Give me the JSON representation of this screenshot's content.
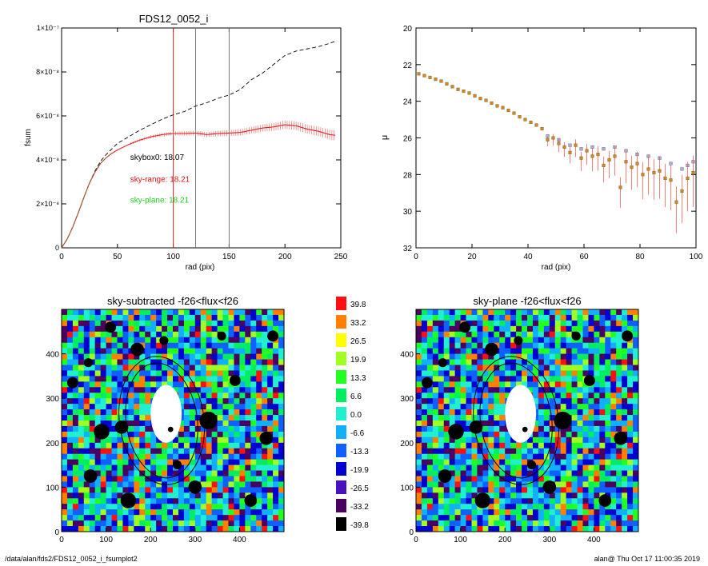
{
  "chart_data": [
    {
      "type": "line",
      "title": "FDS12_0052_i",
      "xlabel": "rad (pix)",
      "ylabel": "fsum",
      "xlim": [
        0,
        250
      ],
      "ylim": [
        0,
        1e-07
      ],
      "xticks": [
        "0",
        "50",
        "100",
        "150",
        "200",
        "250"
      ],
      "yticks": [
        "0",
        "2×10⁻⁸",
        "4×10⁻⁸",
        "6×10⁻⁸",
        "8×10⁻⁸",
        "1×10⁻⁷"
      ],
      "vlines": [
        {
          "x": 100,
          "color": "#e02020"
        },
        {
          "x": 120,
          "color": "#777777"
        },
        {
          "x": 150,
          "color": "#777777"
        }
      ],
      "annotations": [
        {
          "text": "skybox0: 18.07",
          "color": "#000000",
          "x": 60,
          "y": 4e-08
        },
        {
          "text": "sky-range: 18.21",
          "color": "#e01010",
          "x": 60,
          "y": 3e-08
        },
        {
          "text": "sky-plane: 18.21",
          "color": "#20cc20",
          "x": 60,
          "y": 2.05e-08
        }
      ],
      "series": [
        {
          "style": "dashed",
          "color": "#000000",
          "x": [
            0,
            5,
            10,
            15,
            20,
            25,
            30,
            35,
            40,
            45,
            50,
            60,
            70,
            80,
            90,
            100,
            110,
            120,
            130,
            140,
            150,
            160,
            170,
            180,
            190,
            200,
            210,
            220,
            230,
            240,
            245
          ],
          "y": [
            0,
            4e-09,
            9.5e-09,
            1.6e-08,
            2.3e-08,
            2.95e-08,
            3.5e-08,
            3.95e-08,
            4.25e-08,
            4.5e-08,
            4.75e-08,
            5.05e-08,
            5.35e-08,
            5.6e-08,
            5.85e-08,
            6.05e-08,
            6.2e-08,
            6.45e-08,
            6.6e-08,
            6.8e-08,
            6.95e-08,
            7.2e-08,
            7.65e-08,
            7.95e-08,
            8.35e-08,
            8.75e-08,
            8.95e-08,
            9.05e-08,
            9.15e-08,
            9.3e-08,
            9.4e-08
          ]
        },
        {
          "style": "solid-with-errors",
          "color": "#e02020",
          "x": [
            0,
            5,
            10,
            15,
            20,
            25,
            30,
            35,
            40,
            45,
            50,
            60,
            70,
            80,
            90,
            100,
            110,
            120,
            130,
            140,
            150,
            160,
            170,
            180,
            190,
            200,
            210,
            220,
            230,
            240,
            245
          ],
          "y": [
            0,
            4e-09,
            9.5e-09,
            1.6e-08,
            2.3e-08,
            2.95e-08,
            3.45e-08,
            3.85e-08,
            4.1e-08,
            4.3e-08,
            4.45e-08,
            4.7e-08,
            4.9e-08,
            5.05e-08,
            5.15e-08,
            5.2e-08,
            5.2e-08,
            5.22e-08,
            5.15e-08,
            5.2e-08,
            5.22e-08,
            5.25e-08,
            5.35e-08,
            5.45e-08,
            5.5e-08,
            5.6e-08,
            5.55e-08,
            5.4e-08,
            5.3e-08,
            5.15e-08,
            5.12e-08
          ]
        }
      ]
    },
    {
      "type": "scatter",
      "xlabel": "rad (pix)",
      "ylabel": "μ",
      "xlim": [
        0,
        100
      ],
      "ylim": [
        32,
        20
      ],
      "xticks": [
        "0",
        "20",
        "40",
        "60",
        "80",
        "100"
      ],
      "yticks": [
        "20",
        "22",
        "24",
        "26",
        "28",
        "30",
        "32"
      ],
      "series": [
        {
          "marker": "square",
          "color": "#e08020",
          "x": [
            1,
            3,
            5,
            7,
            9,
            11,
            13,
            15,
            17,
            19,
            21,
            23,
            25,
            27,
            29,
            31,
            33,
            35,
            37,
            39,
            41,
            43,
            45,
            47,
            49,
            51,
            53,
            55,
            57,
            59,
            61,
            63,
            65,
            67,
            69,
            71,
            73,
            75,
            77,
            79,
            81,
            83,
            85,
            87,
            89,
            91,
            93,
            95,
            97,
            99
          ],
          "y": [
            22.5,
            22.6,
            22.7,
            22.8,
            22.9,
            23.05,
            23.2,
            23.35,
            23.45,
            23.55,
            23.7,
            23.85,
            23.95,
            24.1,
            24.25,
            24.35,
            24.5,
            24.65,
            24.85,
            25.0,
            25.15,
            25.3,
            25.5,
            26.1,
            26.0,
            26.3,
            26.5,
            26.8,
            26.4,
            27.1,
            26.7,
            27.0,
            26.9,
            27.5,
            27.2,
            27.0,
            28.7,
            27.3,
            27.6,
            27.4,
            28.0,
            27.7,
            27.9,
            27.8,
            28.2,
            28.3,
            29.5,
            28.9,
            28.2,
            27.9
          ]
        },
        {
          "marker": "square",
          "color": "#9a9ac0",
          "x": [
            47,
            51,
            55,
            59,
            63,
            67,
            71,
            75,
            79,
            83,
            87,
            91,
            95,
            97,
            99
          ],
          "y": [
            25.9,
            26.1,
            26.4,
            26.6,
            26.5,
            26.6,
            26.5,
            26.7,
            26.9,
            27.0,
            27.1,
            27.4,
            27.7,
            27.5,
            27.3
          ]
        }
      ]
    },
    {
      "type": "heatmap",
      "title": "sky-subtracted -f26<flux<f26",
      "xlim": [
        0,
        500
      ],
      "ylim": [
        0,
        500
      ],
      "xticks": [
        "0",
        "100",
        "200",
        "300",
        "400"
      ],
      "yticks": [
        "0",
        "100",
        "200",
        "300",
        "400"
      ]
    },
    {
      "type": "heatmap",
      "title": "sky-plane -f26<flux<f26",
      "xlim": [
        0,
        500
      ],
      "ylim": [
        0,
        500
      ],
      "xticks": [
        "0",
        "100",
        "200",
        "300",
        "400"
      ],
      "yticks": [
        "0",
        "100",
        "200",
        "300",
        "400"
      ]
    }
  ],
  "colorbar": {
    "labels": [
      "39.8",
      "33.2",
      "26.5",
      "19.9",
      "13.3",
      "6.6",
      "0.0",
      "-6.6",
      "-13.3",
      "-19.9",
      "-26.5",
      "-33.2",
      "-39.8"
    ],
    "colors": [
      "#ff1010",
      "#ff8000",
      "#ffff00",
      "#a0ff20",
      "#20ff20",
      "#00ee60",
      "#20f0d0",
      "#10b0ff",
      "#1060ff",
      "#0000d0",
      "#4a10c0",
      "#4a0060",
      "#000000"
    ]
  },
  "footer": {
    "left": "/data/alan/fds2/FDS12_0052_i_fsumplot2",
    "right": "alan@  Thu Oct 17 11:00:35 2019"
  }
}
